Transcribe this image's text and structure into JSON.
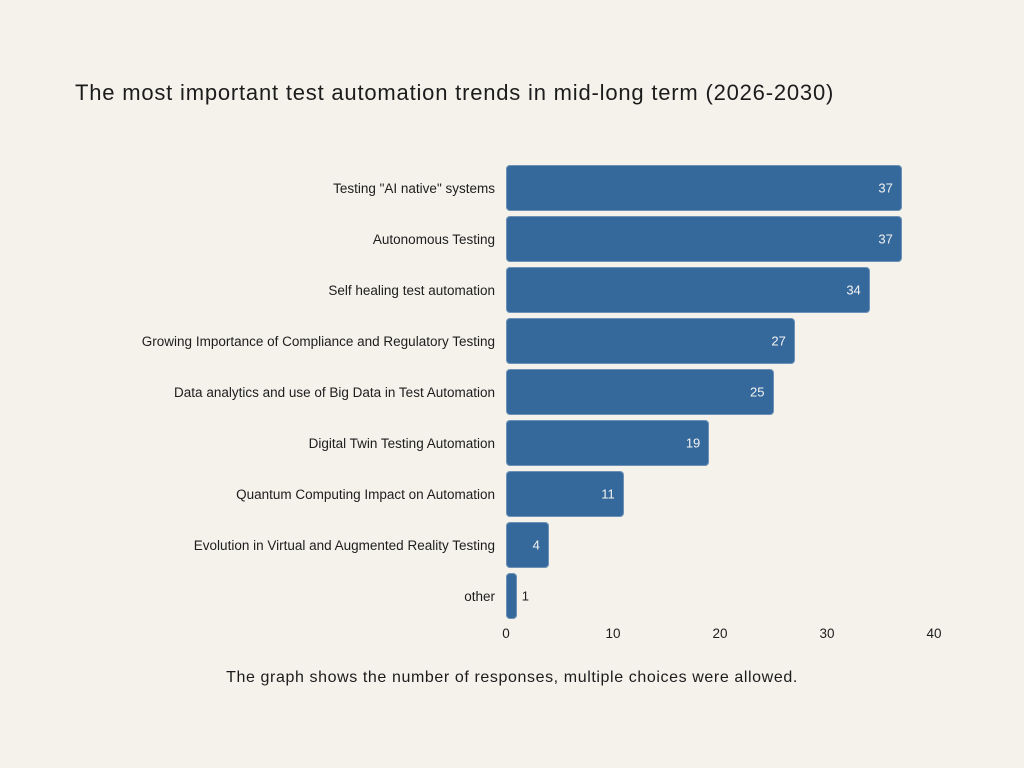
{
  "page": {
    "background": "#F4F2EB",
    "title": "The most important test automation trends in mid-long term (2026-2030)",
    "caption": "The graph shows the number of responses, multiple choices were allowed."
  },
  "chart_data": {
    "type": "bar",
    "orientation": "horizontal",
    "title": "The most important test automation trends in mid-long term (2026-2030)",
    "caption": "The graph shows the number of responses, multiple choices were allowed.",
    "categories": [
      "Testing \"AI native\" systems",
      "Autonomous Testing",
      "Self healing test automation",
      "Growing Importance of Compliance and Regulatory Testing",
      "Data analytics and use of Big Data in Test Automation",
      "Digital Twin Testing Automation",
      "Quantum Computing Impact on Automation",
      "Evolution in Virtual and Augmented Reality Testing",
      "other"
    ],
    "values": [
      37,
      37,
      34,
      27,
      25,
      19,
      11,
      4,
      1
    ],
    "xlabel": "",
    "ylabel": "",
    "xlim": [
      0,
      40
    ],
    "x_ticks": [
      0,
      10,
      20,
      30,
      40
    ],
    "grid": false,
    "legend": false,
    "bar_color": "#36699B",
    "value_label_color_inside": "#F2F2F2",
    "value_label_color_outside": "#1D1D1D",
    "text_color": "#1D1D1D"
  }
}
